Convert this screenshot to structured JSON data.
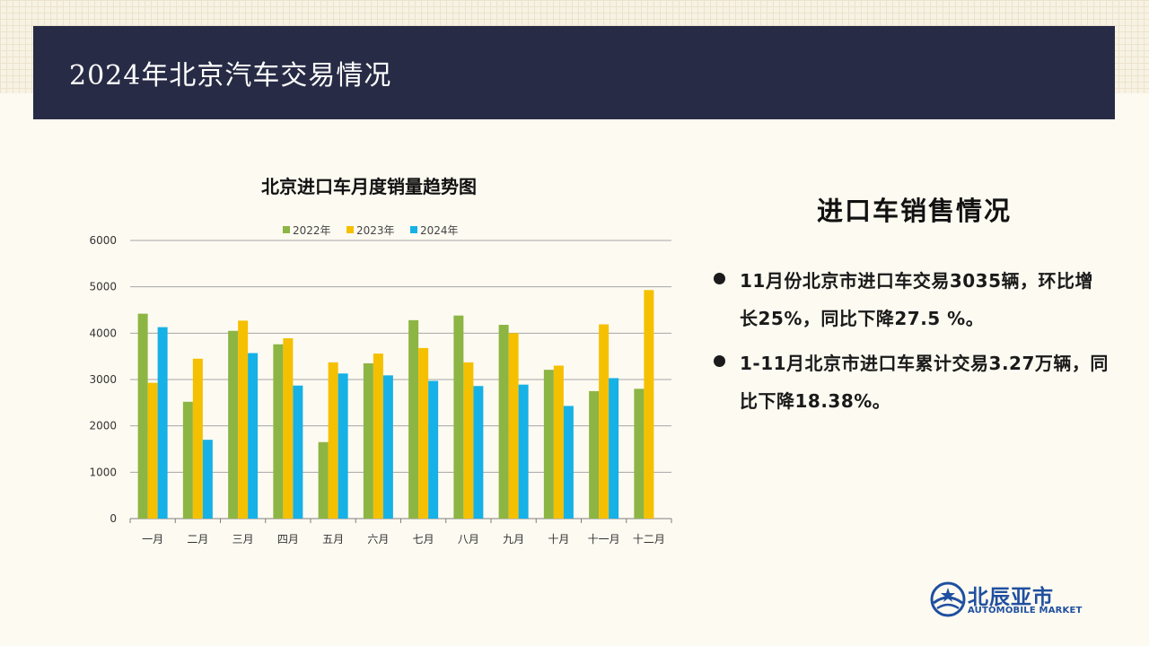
{
  "header": {
    "title": "2024年北京汽车交易情况"
  },
  "chart_data": {
    "type": "bar",
    "title": "北京进口车月度销量趋势图",
    "categories": [
      "一月",
      "二月",
      "三月",
      "四月",
      "五月",
      "六月",
      "七月",
      "八月",
      "九月",
      "十月",
      "十一月",
      "十二月"
    ],
    "series": [
      {
        "name": "2022年",
        "color": "#8db543",
        "values": [
          4420,
          2520,
          4050,
          3760,
          1650,
          3350,
          4280,
          4380,
          4180,
          3210,
          2750,
          2800
        ]
      },
      {
        "name": "2023年",
        "color": "#f5c000",
        "values": [
          2930,
          3450,
          4270,
          3890,
          3370,
          3560,
          3680,
          3370,
          4000,
          3300,
          4190,
          4930
        ]
      },
      {
        "name": "2024年",
        "color": "#16b1e6",
        "values": [
          4130,
          1700,
          3570,
          2870,
          3130,
          3090,
          2970,
          2860,
          2890,
          2430,
          3030,
          null
        ]
      }
    ],
    "yticks": [
      0,
      1000,
      2000,
      3000,
      4000,
      5000,
      6000
    ],
    "ylim": [
      0,
      6000
    ],
    "grid": true,
    "legend": "top"
  },
  "summary": {
    "title": "进口车销售情况",
    "bullets": [
      "11月份北京市进口车交易3035辆，环比增长25%，同比下降27.5 %。",
      "1-11月北京市进口车累计交易3.27万辆，同比下降18.38%。"
    ]
  },
  "logo": {
    "name": "北辰亚市",
    "subtitle": "AUTOMOBILE MARKET",
    "icon": "globe-icon"
  }
}
